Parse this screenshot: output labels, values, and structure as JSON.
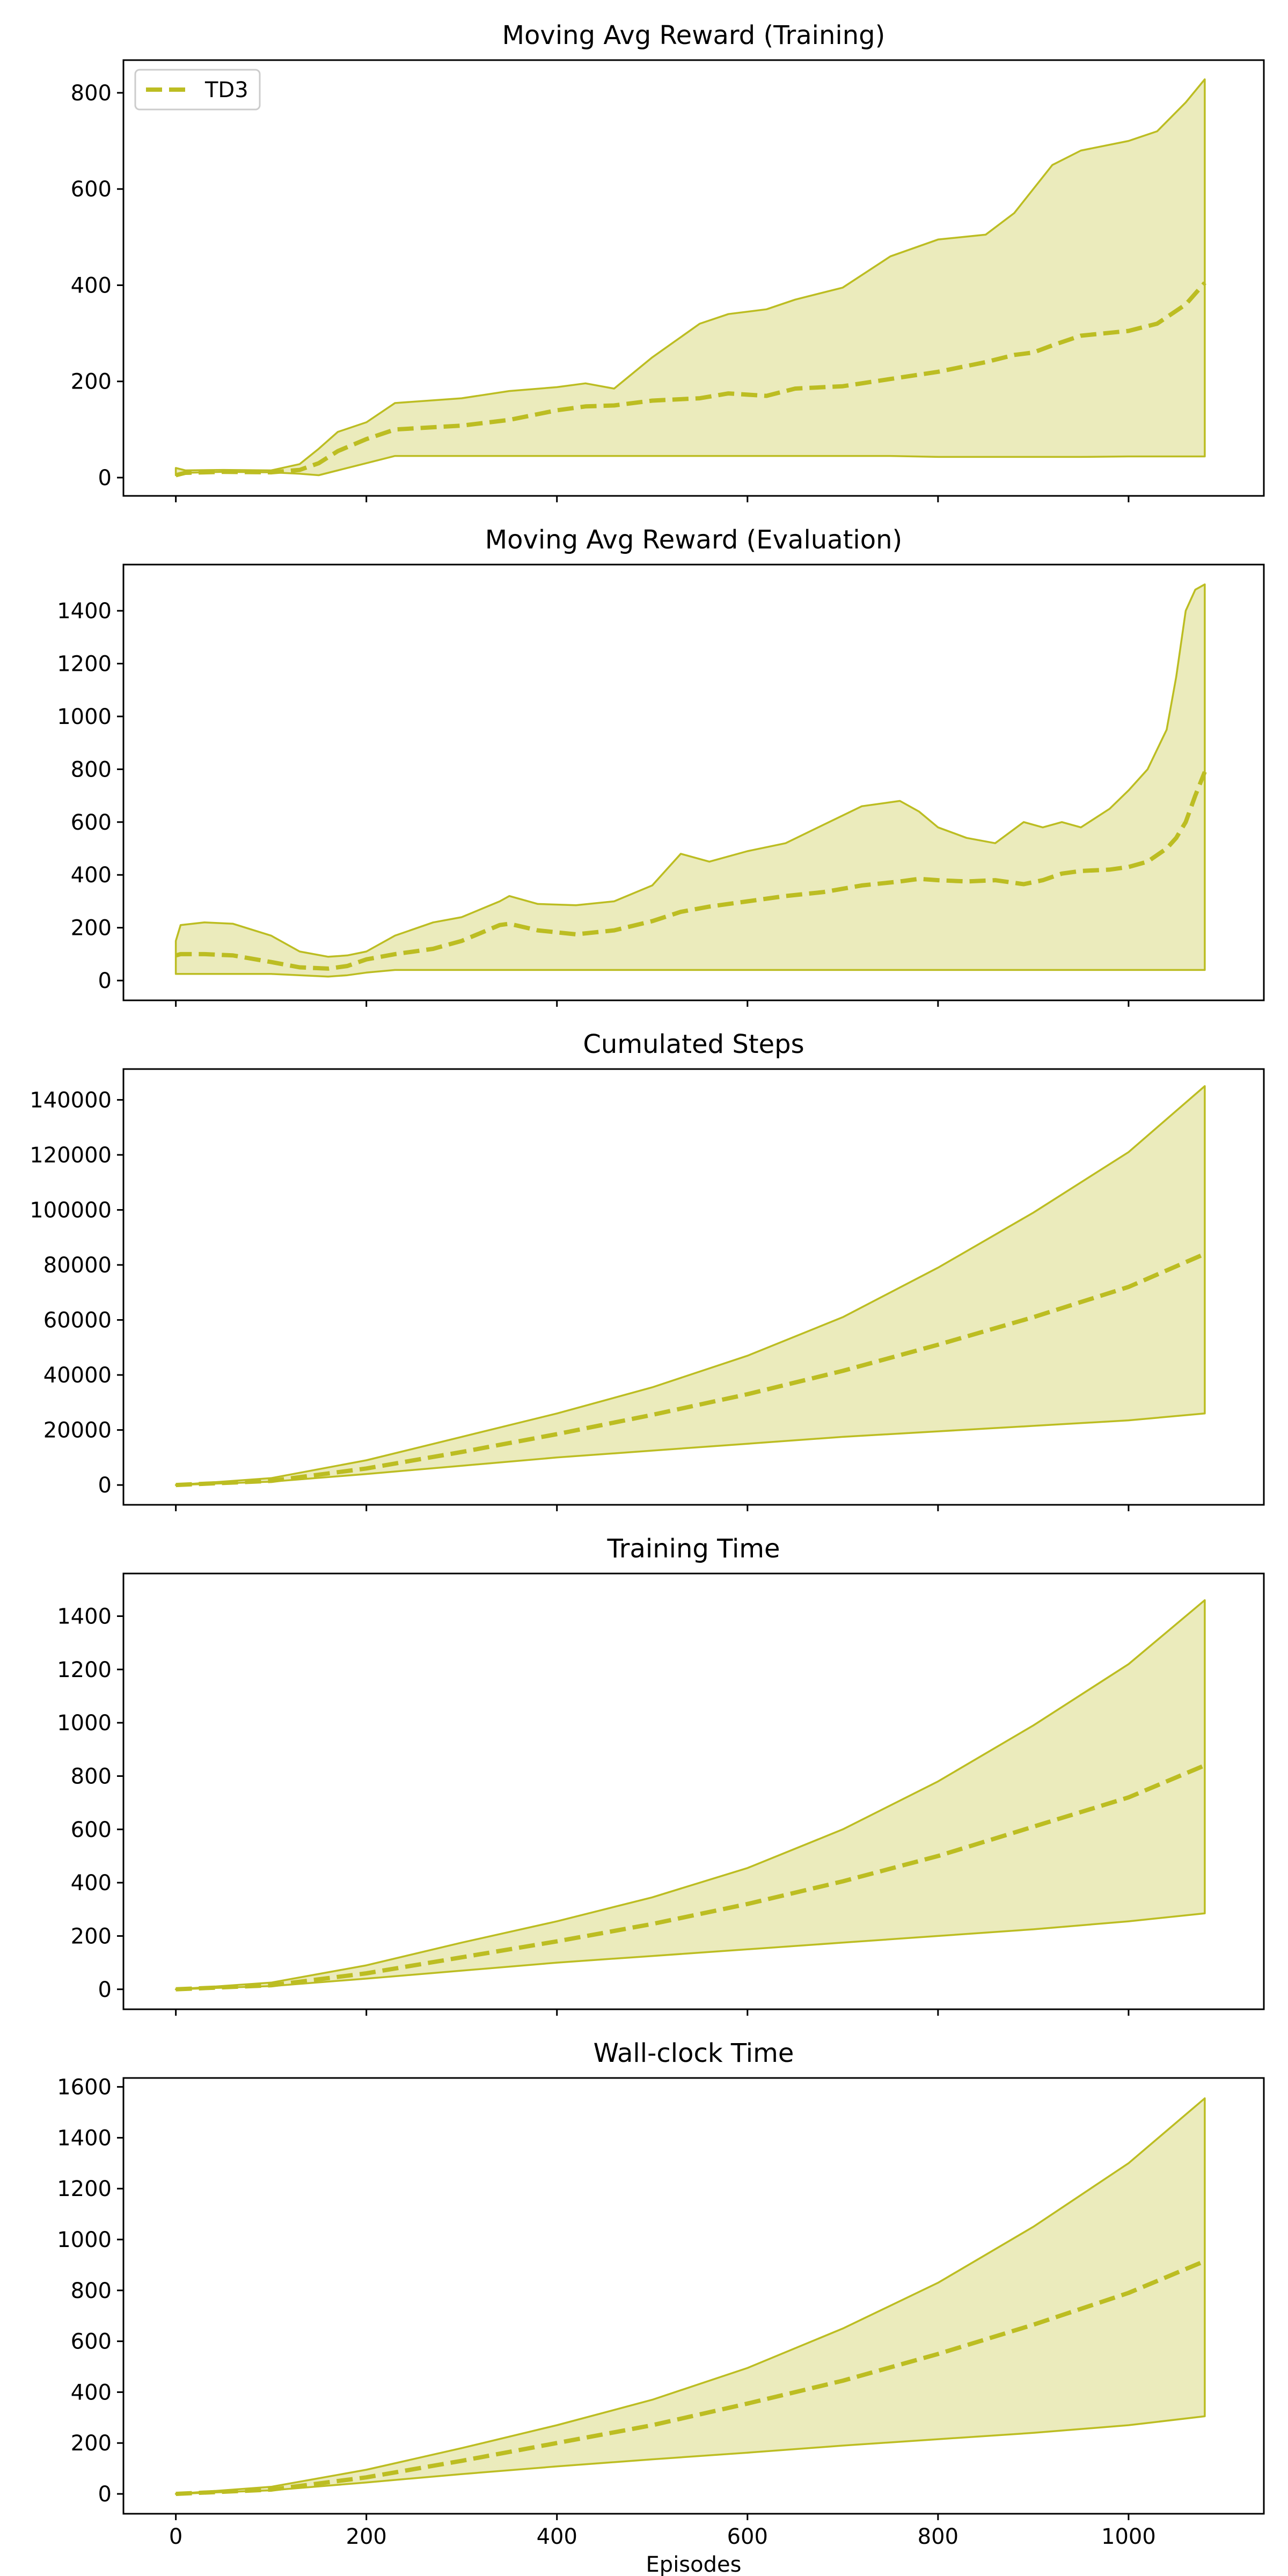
{
  "chart_data": {
    "type": "line",
    "xlabel": "Episodes",
    "series_color": "#bcbd22",
    "legend": {
      "label": "TD3",
      "placement": "upper-left",
      "panel": 0
    },
    "x_range": [
      -55,
      1142
    ],
    "x_ticks": [
      0,
      200,
      400,
      600,
      800,
      1000
    ],
    "panels": [
      {
        "title": "Moving Avg Reward (Training)",
        "ylim": [
          -38,
          868
        ],
        "yticks": [
          0,
          200,
          400,
          600,
          800
        ],
        "x": [
          0,
          10,
          50,
          100,
          130,
          150,
          170,
          200,
          230,
          300,
          350,
          400,
          430,
          460,
          500,
          550,
          580,
          620,
          650,
          700,
          750,
          800,
          850,
          880,
          900,
          920,
          950,
          1000,
          1030,
          1060,
          1080
        ],
        "mean": [
          5,
          10,
          12,
          11,
          16,
          30,
          55,
          80,
          100,
          108,
          120,
          140,
          148,
          150,
          160,
          165,
          175,
          170,
          185,
          190,
          205,
          220,
          240,
          255,
          260,
          275,
          295,
          305,
          320,
          360,
          405
        ],
        "upper": [
          20,
          15,
          16,
          15,
          28,
          60,
          95,
          115,
          155,
          165,
          180,
          188,
          196,
          185,
          250,
          320,
          340,
          350,
          370,
          395,
          460,
          495,
          505,
          550,
          600,
          650,
          680,
          700,
          720,
          780,
          828
        ],
        "lower": [
          5,
          10,
          12,
          11,
          8,
          5,
          15,
          30,
          45,
          45,
          45,
          45,
          45,
          45,
          45,
          45,
          45,
          45,
          45,
          45,
          45,
          43,
          43,
          43,
          43,
          43,
          43,
          44,
          44,
          44,
          44
        ]
      },
      {
        "title": "Moving Avg Reward (Evaluation)",
        "ylim": [
          -75,
          1575
        ],
        "yticks": [
          0,
          200,
          400,
          600,
          800,
          1000,
          1200,
          1400
        ],
        "x": [
          0,
          5,
          30,
          60,
          100,
          130,
          160,
          180,
          200,
          230,
          270,
          300,
          340,
          350,
          380,
          420,
          460,
          500,
          530,
          560,
          600,
          640,
          680,
          720,
          760,
          780,
          800,
          830,
          860,
          890,
          910,
          930,
          950,
          980,
          1000,
          1020,
          1040,
          1050,
          1060,
          1070,
          1080
        ],
        "mean": [
          95,
          100,
          100,
          95,
          70,
          50,
          45,
          55,
          80,
          100,
          120,
          150,
          210,
          215,
          190,
          175,
          190,
          225,
          260,
          280,
          300,
          320,
          335,
          360,
          375,
          385,
          380,
          375,
          380,
          365,
          380,
          405,
          415,
          420,
          430,
          450,
          500,
          540,
          600,
          700,
          790
        ],
        "upper": [
          150,
          210,
          220,
          215,
          170,
          110,
          90,
          95,
          110,
          170,
          220,
          240,
          300,
          320,
          290,
          285,
          300,
          360,
          480,
          450,
          490,
          520,
          590,
          660,
          680,
          640,
          580,
          540,
          520,
          600,
          580,
          600,
          580,
          650,
          720,
          800,
          950,
          1150,
          1400,
          1480,
          1500
        ],
        "lower": [
          25,
          25,
          25,
          25,
          25,
          20,
          15,
          20,
          30,
          40,
          40,
          40,
          40,
          40,
          40,
          40,
          40,
          40,
          40,
          40,
          40,
          40,
          40,
          40,
          40,
          40,
          40,
          40,
          40,
          40,
          40,
          40,
          40,
          40,
          40,
          40,
          40,
          40,
          40,
          40,
          40
        ]
      },
      {
        "title": "Cumulated Steps",
        "ylim": [
          -7200,
          151200
        ],
        "yticks": [
          0,
          20000,
          40000,
          60000,
          80000,
          100000,
          120000,
          140000
        ],
        "x": [
          0,
          100,
          200,
          300,
          400,
          500,
          600,
          700,
          800,
          900,
          1000,
          1080
        ],
        "mean": [
          0,
          1500,
          6000,
          12000,
          18500,
          25500,
          33000,
          41500,
          51000,
          61000,
          72000,
          84000
        ],
        "upper": [
          0,
          2500,
          9000,
          17500,
          26000,
          35500,
          47000,
          61000,
          79000,
          99000,
          121000,
          145000
        ],
        "lower": [
          0,
          1200,
          4000,
          7000,
          10000,
          12500,
          15000,
          17500,
          19500,
          21500,
          23500,
          26000
        ]
      },
      {
        "title": "Training Time",
        "ylim": [
          -75,
          1560
        ],
        "yticks": [
          0,
          200,
          400,
          600,
          800,
          1000,
          1200,
          1400
        ],
        "x": [
          0,
          100,
          200,
          300,
          400,
          500,
          600,
          700,
          800,
          900,
          1000,
          1080
        ],
        "mean": [
          0,
          15,
          60,
          120,
          180,
          245,
          320,
          405,
          500,
          610,
          720,
          840
        ],
        "upper": [
          0,
          25,
          90,
          175,
          255,
          345,
          455,
          600,
          780,
          990,
          1220,
          1460
        ],
        "lower": [
          0,
          12,
          40,
          70,
          100,
          125,
          150,
          175,
          200,
          225,
          255,
          285
        ]
      },
      {
        "title": "Wall-clock Time",
        "ylim": [
          -78,
          1635
        ],
        "yticks": [
          0,
          200,
          400,
          600,
          800,
          1000,
          1200,
          1400,
          1600
        ],
        "x": [
          0,
          100,
          200,
          300,
          400,
          500,
          600,
          700,
          800,
          900,
          1000,
          1080
        ],
        "mean": [
          0,
          17,
          65,
          130,
          200,
          270,
          355,
          445,
          550,
          665,
          790,
          915
        ],
        "upper": [
          0,
          28,
          95,
          180,
          270,
          370,
          495,
          650,
          830,
          1050,
          1300,
          1555
        ],
        "lower": [
          0,
          14,
          45,
          78,
          108,
          136,
          162,
          190,
          215,
          240,
          270,
          305
        ]
      }
    ]
  }
}
